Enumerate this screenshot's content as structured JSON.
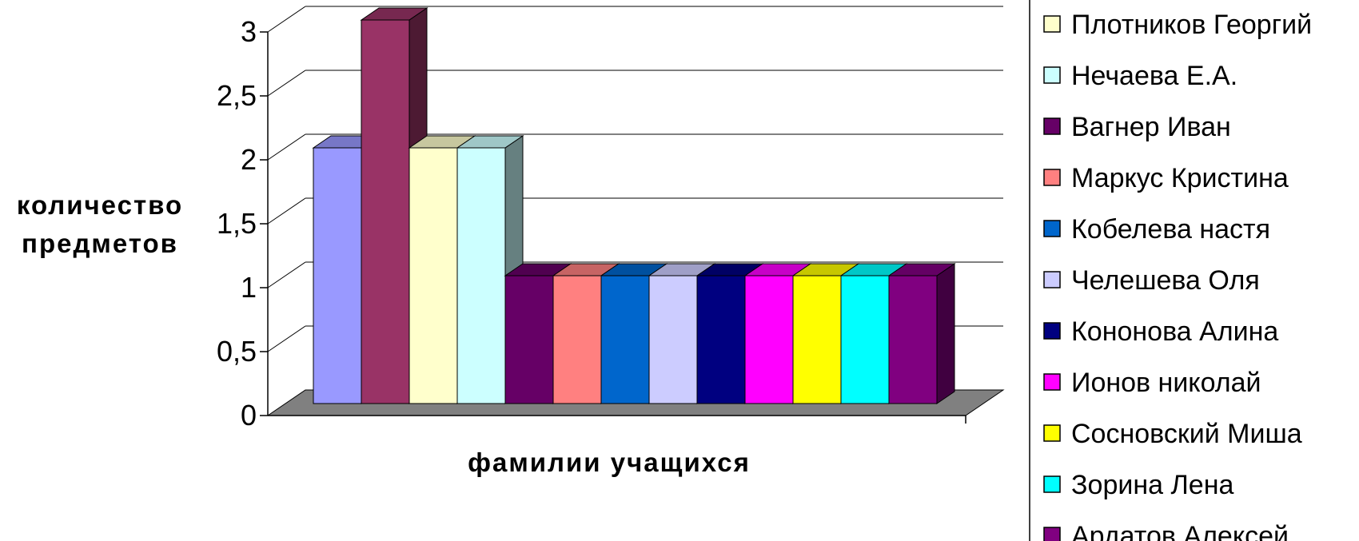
{
  "chart_data": {
    "type": "bar",
    "style": "3d-clustered-column",
    "xlabel": "фамилии учащихся",
    "ylabel": [
      "количество",
      "предметов"
    ],
    "ylim": [
      0,
      3
    ],
    "yticks": [
      "0",
      "0,5",
      "1",
      "1,5",
      "2",
      "2,5",
      "3"
    ],
    "ytick_values": [
      0,
      0.5,
      1,
      1.5,
      2,
      2.5,
      3
    ],
    "grid": true,
    "legend_position": "right",
    "floor_color": "#808080",
    "series": [
      {
        "name": "",
        "value": 2,
        "color": "#9999ff"
      },
      {
        "name": "",
        "value": 3,
        "color": "#993366"
      },
      {
        "name": "Плотников Георгий",
        "value": 2,
        "color": "#ffffcc"
      },
      {
        "name": "Нечаева Е.А.",
        "value": 2,
        "color": "#ccffff"
      },
      {
        "name": "Вагнер Иван",
        "value": 1,
        "color": "#660066"
      },
      {
        "name": "Маркус Кристина",
        "value": 1,
        "color": "#ff8080"
      },
      {
        "name": "Кобелева настя",
        "value": 1,
        "color": "#0066cc"
      },
      {
        "name": "Челешева Оля",
        "value": 1,
        "color": "#ccccff"
      },
      {
        "name": "Кононова Алина",
        "value": 1,
        "color": "#000080"
      },
      {
        "name": "Ионов николай",
        "value": 1,
        "color": "#ff00ff"
      },
      {
        "name": "Сосновский Миша",
        "value": 1,
        "color": "#ffff00"
      },
      {
        "name": "Зорина Лена",
        "value": 1,
        "color": "#00ffff"
      },
      {
        "name": "Ардатов Алексей",
        "value": 1,
        "color": "#800080"
      }
    ]
  }
}
